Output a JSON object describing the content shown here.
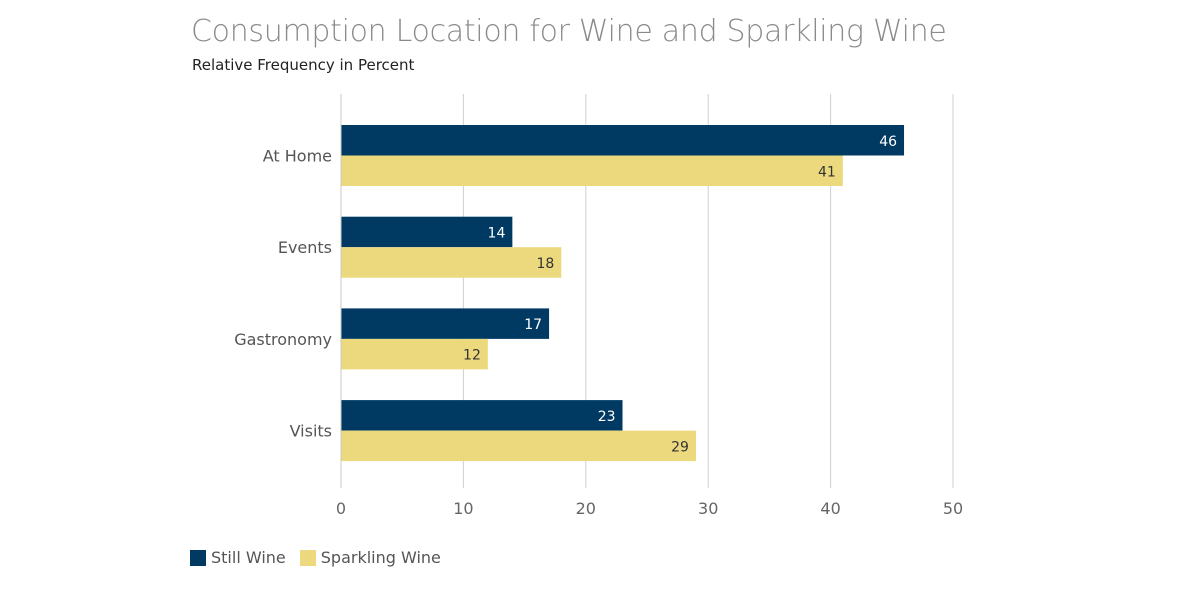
{
  "chart_data": {
    "type": "bar",
    "orientation": "horizontal",
    "title": "Consumption Location for Wine and Sparkling Wine",
    "subtitle": "Relative Frequency in Percent",
    "categories": [
      "At Home",
      "Events",
      "Gastronomy",
      "Visits"
    ],
    "series": [
      {
        "name": "Still Wine",
        "color": "#003a63",
        "values": [
          46,
          14,
          17,
          23
        ]
      },
      {
        "name": "Sparkling Wine",
        "color": "#ecd97e",
        "values": [
          41,
          18,
          12,
          29
        ]
      }
    ],
    "xlim": [
      0,
      50
    ],
    "xticks": [
      0,
      10,
      20,
      30,
      40,
      50
    ],
    "grid": true,
    "legend_position": "bottom-left",
    "data_labels": true
  }
}
